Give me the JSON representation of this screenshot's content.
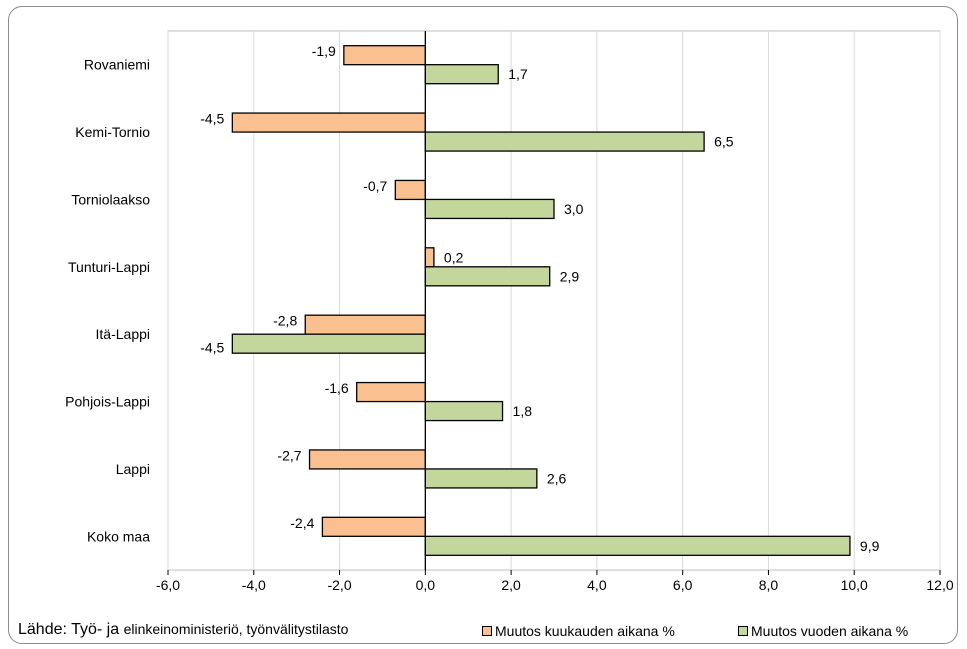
{
  "chart_data": {
    "type": "bar",
    "orientation": "horizontal",
    "categories": [
      "Rovaniemi",
      "Kemi-Tornio",
      "Torniolaakso",
      "Tunturi-Lappi",
      "Itä-Lappi",
      "Pohjois-Lappi",
      "Lappi",
      "Koko maa"
    ],
    "series": [
      {
        "name": "Muutos kuukauden aikana %",
        "values": [
          -1.9,
          -4.5,
          -0.7,
          0.2,
          -2.8,
          -1.6,
          -2.7,
          -2.4
        ],
        "labels": [
          "-1,9",
          "-4,5",
          "-0,7",
          "0,2",
          "-2,8",
          "-1,6",
          "-2,7",
          "-2,4"
        ],
        "color": "#fac090"
      },
      {
        "name": "Muutos vuoden aikana %",
        "values": [
          1.7,
          6.5,
          3.0,
          2.9,
          -4.5,
          1.8,
          2.6,
          9.9
        ],
        "labels": [
          "1,7",
          "6,5",
          "3,0",
          "2,9",
          "-4,5",
          "1,8",
          "2,6",
          "9,9"
        ],
        "color": "#c3d69b"
      }
    ],
    "xlim": [
      -6,
      12
    ],
    "x_ticks": [
      -6,
      -4,
      -2,
      0,
      2,
      4,
      6,
      8,
      10,
      12
    ],
    "x_tick_labels": [
      "-6,0",
      "-4,0",
      "-2,0",
      "0,0",
      "2,0",
      "4,0",
      "6,0",
      "8,0",
      "10,0",
      "12,0"
    ],
    "grid": "vertical",
    "legend_position": "bottom-right"
  },
  "source": {
    "prefix": "Lähde: Työ- ja ",
    "rest": "elinkeinoministeriö, työnvälitystilasto"
  }
}
